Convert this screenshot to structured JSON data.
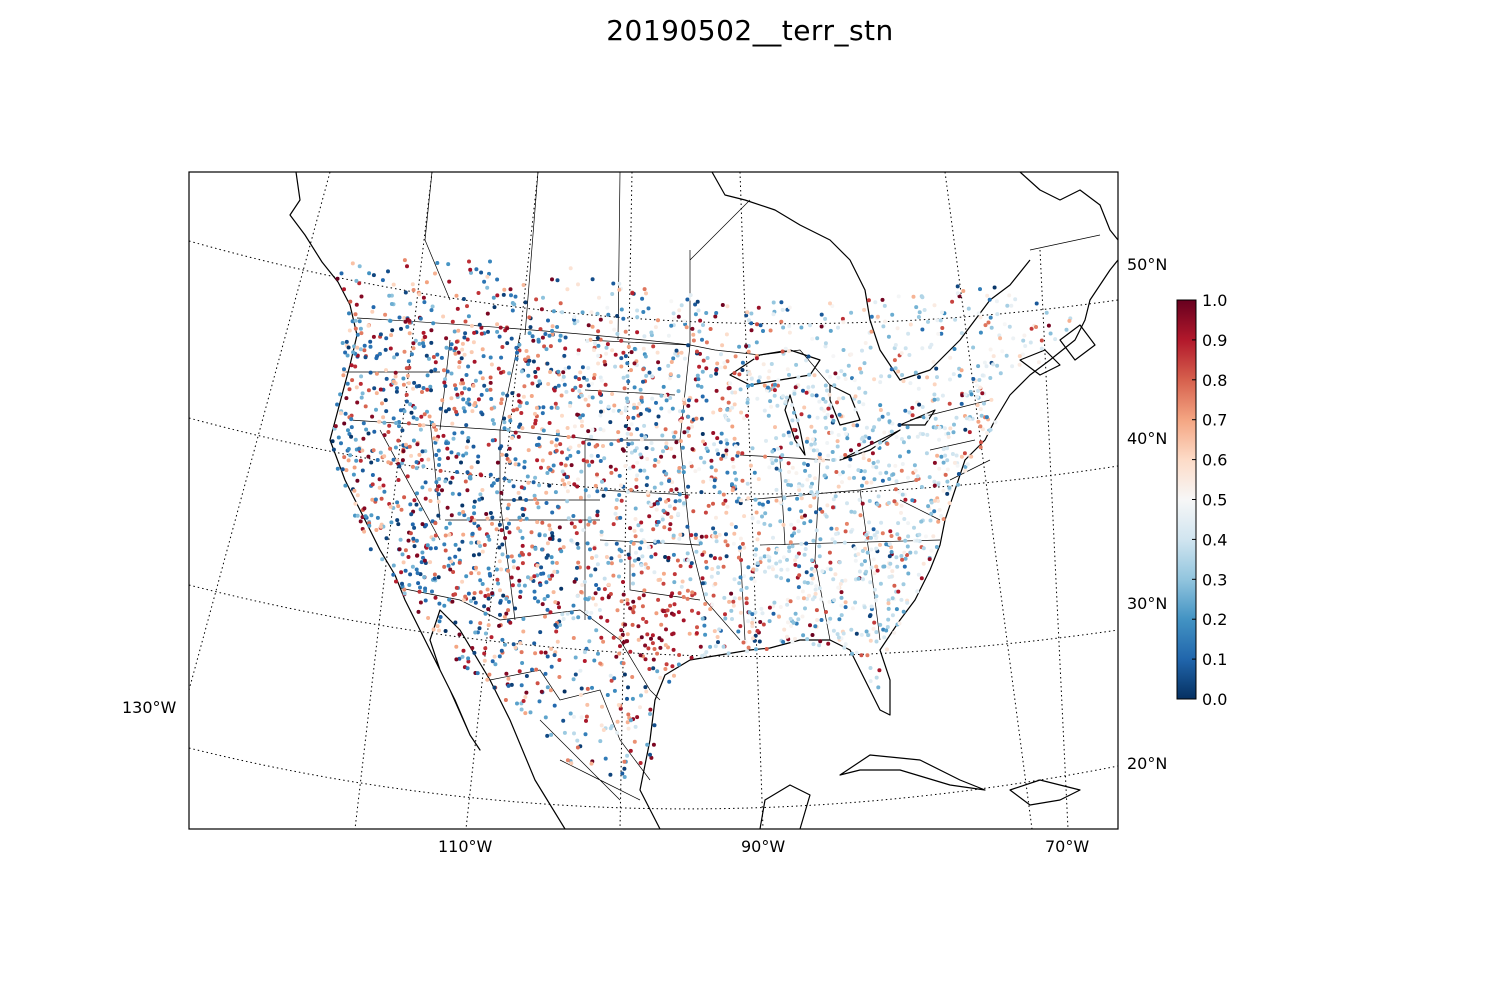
{
  "title": "20190502__terr_stn",
  "map": {
    "projection": "lambert-conformal",
    "latitudes": [
      {
        "value": 20,
        "label": "20°N"
      },
      {
        "value": 30,
        "label": "30°N"
      },
      {
        "value": 40,
        "label": "40°N"
      },
      {
        "value": 50,
        "label": "50°N"
      }
    ],
    "longitudes": [
      {
        "value": -130,
        "label": "130°W"
      },
      {
        "value": -110,
        "label": "110°W"
      },
      {
        "value": -90,
        "label": "90°W"
      },
      {
        "value": -70,
        "label": "70°W"
      }
    ]
  },
  "colorbar": {
    "min": 0.0,
    "max": 1.0,
    "colormap": "RdBu_r",
    "ticks": [
      "0.0",
      "0.1",
      "0.2",
      "0.3",
      "0.4",
      "0.5",
      "0.6",
      "0.7",
      "0.8",
      "0.9",
      "1.0"
    ]
  },
  "colors": {
    "low": "#053061",
    "mid": "#f7f7f7",
    "high": "#67001f",
    "coast": "#000000"
  }
}
